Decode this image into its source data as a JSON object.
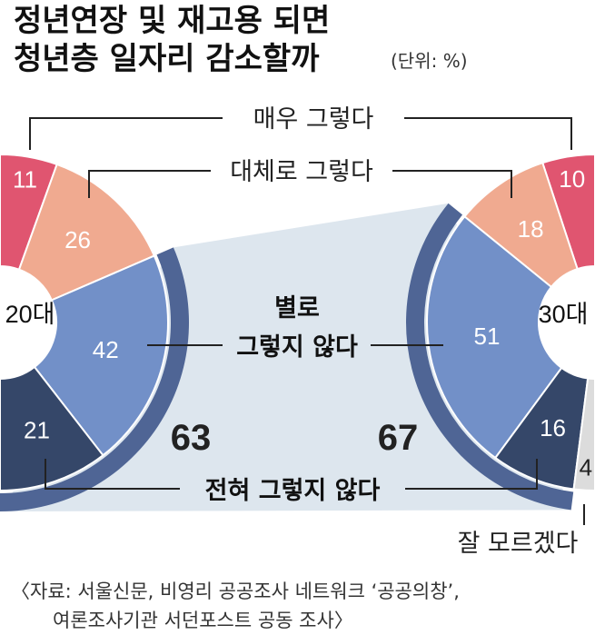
{
  "chart_data": {
    "type": "pie",
    "title_lines": [
      "정년연장 및 재고용 되면",
      "청년층 일자리 감소할까"
    ],
    "unit": "(단위: %)",
    "categories": [
      "매우 그렇다",
      "대체로 그렇다",
      "별로 그렇지 않다",
      "전혀 그렇지 않다",
      "잘 모르겠다"
    ],
    "category_label_mid": [
      "별로",
      "그렇지 않다"
    ],
    "series": [
      {
        "name": "20대",
        "values": [
          11,
          26,
          42,
          21,
          0
        ],
        "negative_total": 63
      },
      {
        "name": "30대",
        "values": [
          10,
          18,
          51,
          16,
          4
        ],
        "negative_total": 67
      }
    ],
    "colors": [
      "#e05570",
      "#f0aa90",
      "#7290c8",
      "#354769",
      "#dcdcdc"
    ],
    "bracket_color": "#4f6595",
    "band_color": "#dde6ee"
  },
  "source": [
    "〈자료: 서울신문, 비영리 공공조사 네트워크 ‘공공의창’,",
    "여론조사기관 서던포스트 공동 조사〉"
  ]
}
